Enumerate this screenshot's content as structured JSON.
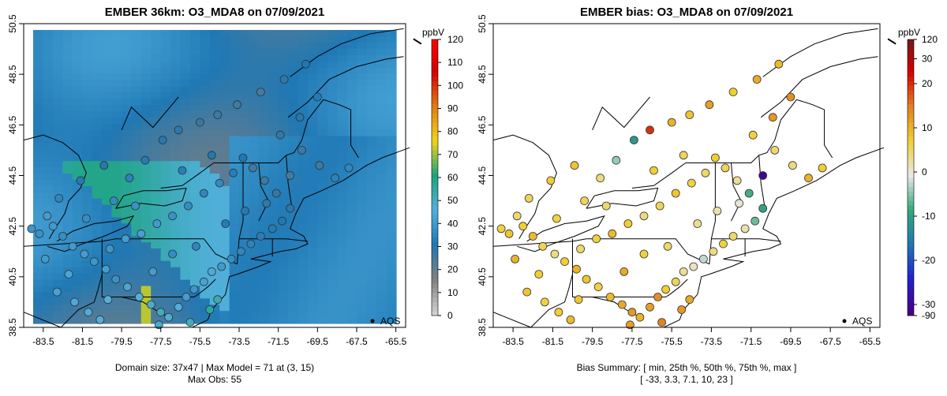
{
  "colors": {
    "conc_scale": [
      "#d0d0d0",
      "#7f7f7f",
      "#1f78b4",
      "#54b0e0",
      "#1aa37a",
      "#f2d31b",
      "#e07d12",
      "#d40000",
      "#ff0000"
    ],
    "bias_scale": [
      "#4b0082",
      "#2020d0",
      "#1f78b4",
      "#33a87a",
      "#e8e8e8",
      "#f0d030",
      "#e08020",
      "#d40000",
      "#6b1a1a"
    ],
    "marker_stroke": "#333333"
  },
  "chart_data": [
    {
      "type": "heatmap",
      "title": "EMBER 36km: O3_MDA8 on 07/09/2021",
      "x_tick_labels": [
        "-83.5",
        "-81.5",
        "-79.5",
        "-77.5",
        "-75.5",
        "-73.5",
        "-71.5",
        "-69.5",
        "-67.5",
        "-65.5"
      ],
      "y_tick_labels": [
        "38.5",
        "40.5",
        "42.5",
        "44.5",
        "46.5",
        "48.5",
        "50.5"
      ],
      "xlim": [
        -84.5,
        -65.0
      ],
      "ylim": [
        38.5,
        50.5
      ],
      "colorbar": {
        "unit": "ppbV",
        "range": [
          0,
          120
        ],
        "tick_labels": [
          "0",
          "10",
          "20",
          "30",
          "40",
          "50",
          "60",
          "70",
          "80",
          "90",
          "100",
          "110",
          "120"
        ]
      },
      "legend_label": "AQS",
      "legend_placement": "bottom-right",
      "footer_lines": [
        "Domain size: 37x47 | Max Model = 71 at (3, 15)",
        "Max Obs: 55"
      ],
      "obs_points": [
        {
          "lon": -84.1,
          "lat": 42.4,
          "value": 38
        },
        {
          "lon": -83.7,
          "lat": 42.2,
          "value": 37
        },
        {
          "lon": -83.3,
          "lat": 42.9,
          "value": 40
        },
        {
          "lon": -83.0,
          "lat": 42.5,
          "value": 39
        },
        {
          "lon": -82.5,
          "lat": 42.1,
          "value": 36
        },
        {
          "lon": -82.0,
          "lat": 41.7,
          "value": 39
        },
        {
          "lon": -81.4,
          "lat": 41.4,
          "value": 40
        },
        {
          "lon": -80.9,
          "lat": 41.1,
          "value": 38
        },
        {
          "lon": -80.3,
          "lat": 40.8,
          "value": 40
        },
        {
          "lon": -79.8,
          "lat": 40.4,
          "value": 37
        },
        {
          "lon": -79.2,
          "lat": 40.1,
          "value": 42
        },
        {
          "lon": -78.6,
          "lat": 39.7,
          "value": 45
        },
        {
          "lon": -78.0,
          "lat": 39.4,
          "value": 48
        },
        {
          "lon": -77.5,
          "lat": 39.1,
          "value": 50
        },
        {
          "lon": -77.1,
          "lat": 38.9,
          "value": 47
        },
        {
          "lon": -76.6,
          "lat": 39.3,
          "value": 44
        },
        {
          "lon": -76.2,
          "lat": 39.7,
          "value": 40
        },
        {
          "lon": -75.8,
          "lat": 40.0,
          "value": 38
        },
        {
          "lon": -75.3,
          "lat": 40.3,
          "value": 41
        },
        {
          "lon": -74.9,
          "lat": 40.7,
          "value": 43
        },
        {
          "lon": -74.4,
          "lat": 40.9,
          "value": 39
        },
        {
          "lon": -73.9,
          "lat": 41.2,
          "value": 36
        },
        {
          "lon": -73.4,
          "lat": 41.5,
          "value": 34
        },
        {
          "lon": -72.9,
          "lat": 41.8,
          "value": 33
        },
        {
          "lon": -72.4,
          "lat": 42.1,
          "value": 32
        },
        {
          "lon": -71.8,
          "lat": 42.4,
          "value": 31
        },
        {
          "lon": -71.3,
          "lat": 42.7,
          "value": 30
        },
        {
          "lon": -70.9,
          "lat": 43.2,
          "value": 29
        },
        {
          "lon": -71.6,
          "lat": 43.8,
          "value": 27
        },
        {
          "lon": -72.2,
          "lat": 44.3,
          "value": 26
        },
        {
          "lon": -72.8,
          "lat": 44.8,
          "value": 25
        },
        {
          "lon": -73.3,
          "lat": 45.2,
          "value": 30
        },
        {
          "lon": -73.8,
          "lat": 44.6,
          "value": 32
        },
        {
          "lon": -74.5,
          "lat": 44.2,
          "value": 35
        },
        {
          "lon": -75.3,
          "lat": 43.8,
          "value": 34
        },
        {
          "lon": -76.1,
          "lat": 43.3,
          "value": 36
        },
        {
          "lon": -76.9,
          "lat": 42.9,
          "value": 37
        },
        {
          "lon": -77.7,
          "lat": 42.6,
          "value": 39
        },
        {
          "lon": -78.5,
          "lat": 42.2,
          "value": 41
        },
        {
          "lon": -79.3,
          "lat": 42.0,
          "value": 40
        },
        {
          "lon": -80.1,
          "lat": 41.6,
          "value": 38
        },
        {
          "lon": -79.9,
          "lat": 43.5,
          "value": 35
        },
        {
          "lon": -79.1,
          "lat": 44.4,
          "value": 33
        },
        {
          "lon": -78.3,
          "lat": 45.1,
          "value": 31
        },
        {
          "lon": -77.4,
          "lat": 45.9,
          "value": 29
        },
        {
          "lon": -76.6,
          "lat": 46.3,
          "value": 28
        },
        {
          "lon": -75.5,
          "lat": 46.6,
          "value": 27
        },
        {
          "lon": -74.6,
          "lat": 46.9,
          "value": 26
        },
        {
          "lon": -73.6,
          "lat": 47.3,
          "value": 25
        },
        {
          "lon": -72.4,
          "lat": 47.8,
          "value": 24
        },
        {
          "lon": -71.2,
          "lat": 48.3,
          "value": 28
        },
        {
          "lon": -70.1,
          "lat": 48.9,
          "value": 30
        },
        {
          "lon": -69.5,
          "lat": 47.6,
          "value": 31
        },
        {
          "lon": -70.4,
          "lat": 46.8,
          "value": 29
        },
        {
          "lon": -71.4,
          "lat": 46.1,
          "value": 27
        },
        {
          "lon": -70.3,
          "lat": 45.5,
          "value": 26
        },
        {
          "lon": -69.4,
          "lat": 44.9,
          "value": 25
        },
        {
          "lon": -70.9,
          "lat": 44.5,
          "value": 24
        },
        {
          "lon": -68.6,
          "lat": 44.4,
          "value": 33
        },
        {
          "lon": -67.9,
          "lat": 44.8,
          "value": 34
        },
        {
          "lon": -82.8,
          "lat": 39.9,
          "value": 41
        },
        {
          "lon": -81.9,
          "lat": 39.5,
          "value": 43
        },
        {
          "lon": -81.2,
          "lat": 39.1,
          "value": 44
        },
        {
          "lon": -80.6,
          "lat": 38.8,
          "value": 46
        },
        {
          "lon": -83.4,
          "lat": 41.2,
          "value": 39
        },
        {
          "lon": -82.2,
          "lat": 40.6,
          "value": 42
        },
        {
          "lon": -80.2,
          "lat": 39.6,
          "value": 45
        },
        {
          "lon": -77.9,
          "lat": 40.7,
          "value": 40
        },
        {
          "lon": -76.9,
          "lat": 41.4,
          "value": 36
        },
        {
          "lon": -75.7,
          "lat": 41.7,
          "value": 34
        },
        {
          "lon": -74.2,
          "lat": 42.6,
          "value": 31
        },
        {
          "lon": -73.2,
          "lat": 43.1,
          "value": 29
        },
        {
          "lon": -72.1,
          "lat": 43.4,
          "value": 28
        },
        {
          "lon": -74.9,
          "lat": 45.3,
          "value": 30
        },
        {
          "lon": -76.4,
          "lat": 44.7,
          "value": 32
        },
        {
          "lon": -78.8,
          "lat": 43.3,
          "value": 37
        },
        {
          "lon": -81.3,
          "lat": 42.8,
          "value": 36
        },
        {
          "lon": -82.7,
          "lat": 43.6,
          "value": 34
        },
        {
          "lon": -81.6,
          "lat": 44.3,
          "value": 31
        },
        {
          "lon": -80.4,
          "lat": 44.9,
          "value": 29
        },
        {
          "lon": -75.0,
          "lat": 39.2,
          "value": 55
        },
        {
          "lon": -74.6,
          "lat": 39.6,
          "value": 52
        },
        {
          "lon": -76.0,
          "lat": 38.7,
          "value": 50
        },
        {
          "lon": -77.6,
          "lat": 38.6,
          "value": 48
        }
      ]
    },
    {
      "type": "scatter",
      "title": "EMBER bias: O3_MDA8 on 07/09/2021",
      "x_tick_labels": [
        "-83.5",
        "-81.5",
        "-79.5",
        "-77.5",
        "-75.5",
        "-73.5",
        "-71.5",
        "-69.5",
        "-67.5",
        "-65.5"
      ],
      "y_tick_labels": [
        "38.5",
        "40.5",
        "42.5",
        "44.5",
        "46.5",
        "48.5",
        "50.5"
      ],
      "xlim": [
        -84.5,
        -65.0
      ],
      "ylim": [
        38.5,
        50.5
      ],
      "colorbar": {
        "unit": "ppbV",
        "tick_labels": [
          "-90",
          "-30",
          "-20",
          "-10",
          "0",
          "10",
          "20",
          "30",
          "120"
        ]
      },
      "legend_label": "AQS",
      "legend_placement": "bottom-right",
      "footer_lines": [
        "Bias Summary: [ min, 25th %, 50th %, 75th %, max ]",
        "[ -33,   3.3,   7.1,   10,   23 ]"
      ],
      "bias_summary": {
        "min": -33,
        "p25": 3.3,
        "p50": 7.1,
        "p75": 10,
        "max": 23
      },
      "obs_points": [
        {
          "lon": -84.1,
          "lat": 42.4,
          "value": 8
        },
        {
          "lon": -83.7,
          "lat": 42.2,
          "value": 10
        },
        {
          "lon": -83.3,
          "lat": 42.9,
          "value": 6
        },
        {
          "lon": -83.0,
          "lat": 42.5,
          "value": 9
        },
        {
          "lon": -82.5,
          "lat": 42.1,
          "value": 11
        },
        {
          "lon": -82.0,
          "lat": 41.7,
          "value": 7
        },
        {
          "lon": -81.4,
          "lat": 41.4,
          "value": 5
        },
        {
          "lon": -80.9,
          "lat": 41.1,
          "value": 9
        },
        {
          "lon": -80.3,
          "lat": 40.8,
          "value": 12
        },
        {
          "lon": -79.8,
          "lat": 40.4,
          "value": 10
        },
        {
          "lon": -79.2,
          "lat": 40.1,
          "value": 8
        },
        {
          "lon": -78.6,
          "lat": 39.7,
          "value": 11
        },
        {
          "lon": -78.0,
          "lat": 39.4,
          "value": 13
        },
        {
          "lon": -77.5,
          "lat": 39.1,
          "value": 15
        },
        {
          "lon": -77.1,
          "lat": 38.9,
          "value": 12
        },
        {
          "lon": -76.6,
          "lat": 39.3,
          "value": 14
        },
        {
          "lon": -76.2,
          "lat": 39.7,
          "value": 16
        },
        {
          "lon": -75.8,
          "lat": 40.0,
          "value": 9
        },
        {
          "lon": -75.3,
          "lat": 40.3,
          "value": 7
        },
        {
          "lon": -74.9,
          "lat": 40.7,
          "value": 4
        },
        {
          "lon": -74.4,
          "lat": 40.9,
          "value": 2
        },
        {
          "lon": -73.9,
          "lat": 41.2,
          "value": -2
        },
        {
          "lon": -73.4,
          "lat": 41.5,
          "value": 5
        },
        {
          "lon": -72.9,
          "lat": 41.8,
          "value": 8
        },
        {
          "lon": -72.4,
          "lat": 42.1,
          "value": 6
        },
        {
          "lon": -71.8,
          "lat": 42.4,
          "value": 3
        },
        {
          "lon": -71.3,
          "lat": 42.7,
          "value": -6
        },
        {
          "lon": -70.9,
          "lat": 43.2,
          "value": -10
        },
        {
          "lon": -71.6,
          "lat": 43.8,
          "value": -8
        },
        {
          "lon": -72.2,
          "lat": 44.3,
          "value": 4
        },
        {
          "lon": -72.8,
          "lat": 44.8,
          "value": 7
        },
        {
          "lon": -73.3,
          "lat": 45.2,
          "value": 9
        },
        {
          "lon": -73.8,
          "lat": 44.6,
          "value": 6
        },
        {
          "lon": -74.5,
          "lat": 44.2,
          "value": 8
        },
        {
          "lon": -75.3,
          "lat": 43.8,
          "value": 10
        },
        {
          "lon": -76.1,
          "lat": 43.3,
          "value": 7
        },
        {
          "lon": -76.9,
          "lat": 42.9,
          "value": 5
        },
        {
          "lon": -77.7,
          "lat": 42.6,
          "value": 9
        },
        {
          "lon": -78.5,
          "lat": 42.2,
          "value": 11
        },
        {
          "lon": -79.3,
          "lat": 42.0,
          "value": 8
        },
        {
          "lon": -80.1,
          "lat": 41.6,
          "value": 6
        },
        {
          "lon": -79.9,
          "lat": 43.5,
          "value": 7
        },
        {
          "lon": -79.1,
          "lat": 44.4,
          "value": 5
        },
        {
          "lon": -78.3,
          "lat": 45.1,
          "value": -4
        },
        {
          "lon": -77.4,
          "lat": 45.9,
          "value": -12
        },
        {
          "lon": -76.6,
          "lat": 46.3,
          "value": 23
        },
        {
          "lon": -75.5,
          "lat": 46.6,
          "value": 12
        },
        {
          "lon": -74.6,
          "lat": 46.9,
          "value": 10
        },
        {
          "lon": -73.6,
          "lat": 47.3,
          "value": 14
        },
        {
          "lon": -72.4,
          "lat": 47.8,
          "value": 9
        },
        {
          "lon": -71.2,
          "lat": 48.3,
          "value": 13
        },
        {
          "lon": -70.1,
          "lat": 48.9,
          "value": 11
        },
        {
          "lon": -69.5,
          "lat": 47.6,
          "value": 16
        },
        {
          "lon": -70.4,
          "lat": 46.8,
          "value": 15
        },
        {
          "lon": -71.4,
          "lat": 46.1,
          "value": 8
        },
        {
          "lon": -70.3,
          "lat": 45.5,
          "value": 6
        },
        {
          "lon": -69.4,
          "lat": 44.9,
          "value": 5
        },
        {
          "lon": -70.9,
          "lat": 44.5,
          "value": -33
        },
        {
          "lon": -68.6,
          "lat": 44.4,
          "value": 12
        },
        {
          "lon": -67.9,
          "lat": 44.8,
          "value": 9
        },
        {
          "lon": -82.8,
          "lat": 39.9,
          "value": 10
        },
        {
          "lon": -81.9,
          "lat": 39.5,
          "value": 8
        },
        {
          "lon": -81.2,
          "lat": 39.1,
          "value": 9
        },
        {
          "lon": -80.6,
          "lat": 38.8,
          "value": 11
        },
        {
          "lon": -83.4,
          "lat": 41.2,
          "value": 12
        },
        {
          "lon": -82.2,
          "lat": 40.6,
          "value": 9
        },
        {
          "lon": -80.2,
          "lat": 39.6,
          "value": 10
        },
        {
          "lon": -77.9,
          "lat": 40.7,
          "value": 13
        },
        {
          "lon": -76.9,
          "lat": 41.4,
          "value": 8
        },
        {
          "lon": -75.7,
          "lat": 41.7,
          "value": 6
        },
        {
          "lon": -74.2,
          "lat": 42.6,
          "value": 4
        },
        {
          "lon": -73.2,
          "lat": 43.1,
          "value": 3
        },
        {
          "lon": -72.1,
          "lat": 43.4,
          "value": 1
        },
        {
          "lon": -74.9,
          "lat": 45.3,
          "value": 7
        },
        {
          "lon": -76.4,
          "lat": 44.7,
          "value": 9
        },
        {
          "lon": -78.8,
          "lat": 43.3,
          "value": 6
        },
        {
          "lon": -81.3,
          "lat": 42.8,
          "value": 8
        },
        {
          "lon": -82.7,
          "lat": 43.6,
          "value": 7
        },
        {
          "lon": -81.6,
          "lat": 44.3,
          "value": 9
        },
        {
          "lon": -80.4,
          "lat": 44.9,
          "value": 10
        },
        {
          "lon": -75.0,
          "lat": 39.2,
          "value": 15
        },
        {
          "lon": -74.6,
          "lat": 39.6,
          "value": 13
        },
        {
          "lon": -76.0,
          "lat": 38.7,
          "value": 17
        },
        {
          "lon": -77.6,
          "lat": 38.6,
          "value": 14
        }
      ]
    }
  ]
}
